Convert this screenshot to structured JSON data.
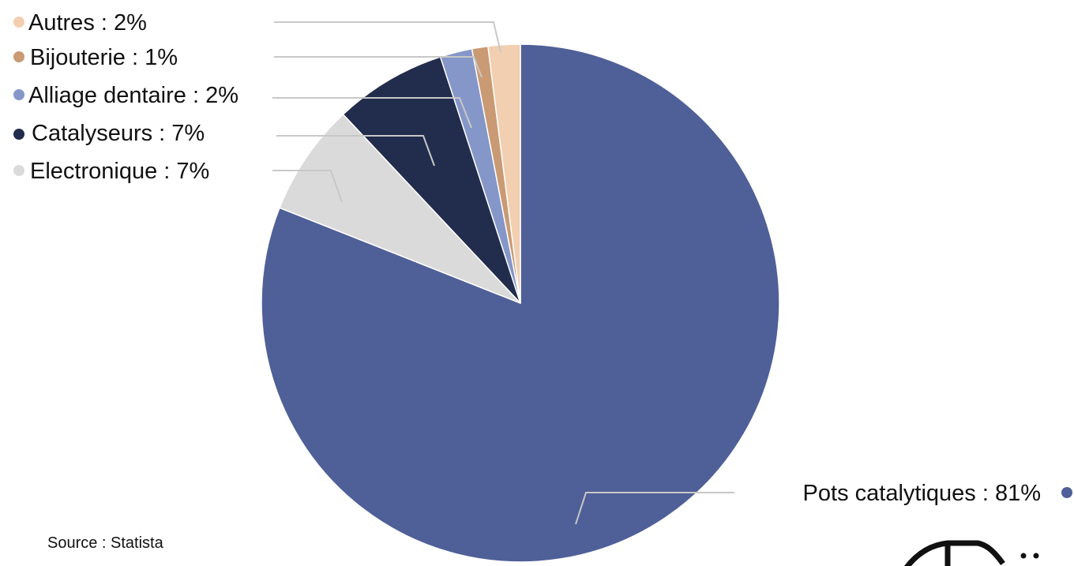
{
  "chart_data": {
    "type": "pie",
    "title": "",
    "categories": [
      "Pots catalytiques",
      "Electronique",
      "Catalyseurs",
      "Alliage dentaire",
      "Bijouterie",
      "Autres"
    ],
    "values": [
      81,
      7,
      7,
      2,
      1,
      2
    ],
    "labels": [
      "Pots catalytiques : 81%",
      "Electronique : 7%",
      "Catalyseurs : 7%",
      "Alliage dentaire : 2%",
      "Bijouterie : 1%",
      "Autres : 2%"
    ],
    "colors": [
      "#4f5f98",
      "#dadada",
      "#222c4c",
      "#8597c9",
      "#c99a73",
      "#f1cfb0"
    ],
    "legend_placement": "labels beside slices (top-left list and right)"
  },
  "source": "Source : Statista"
}
